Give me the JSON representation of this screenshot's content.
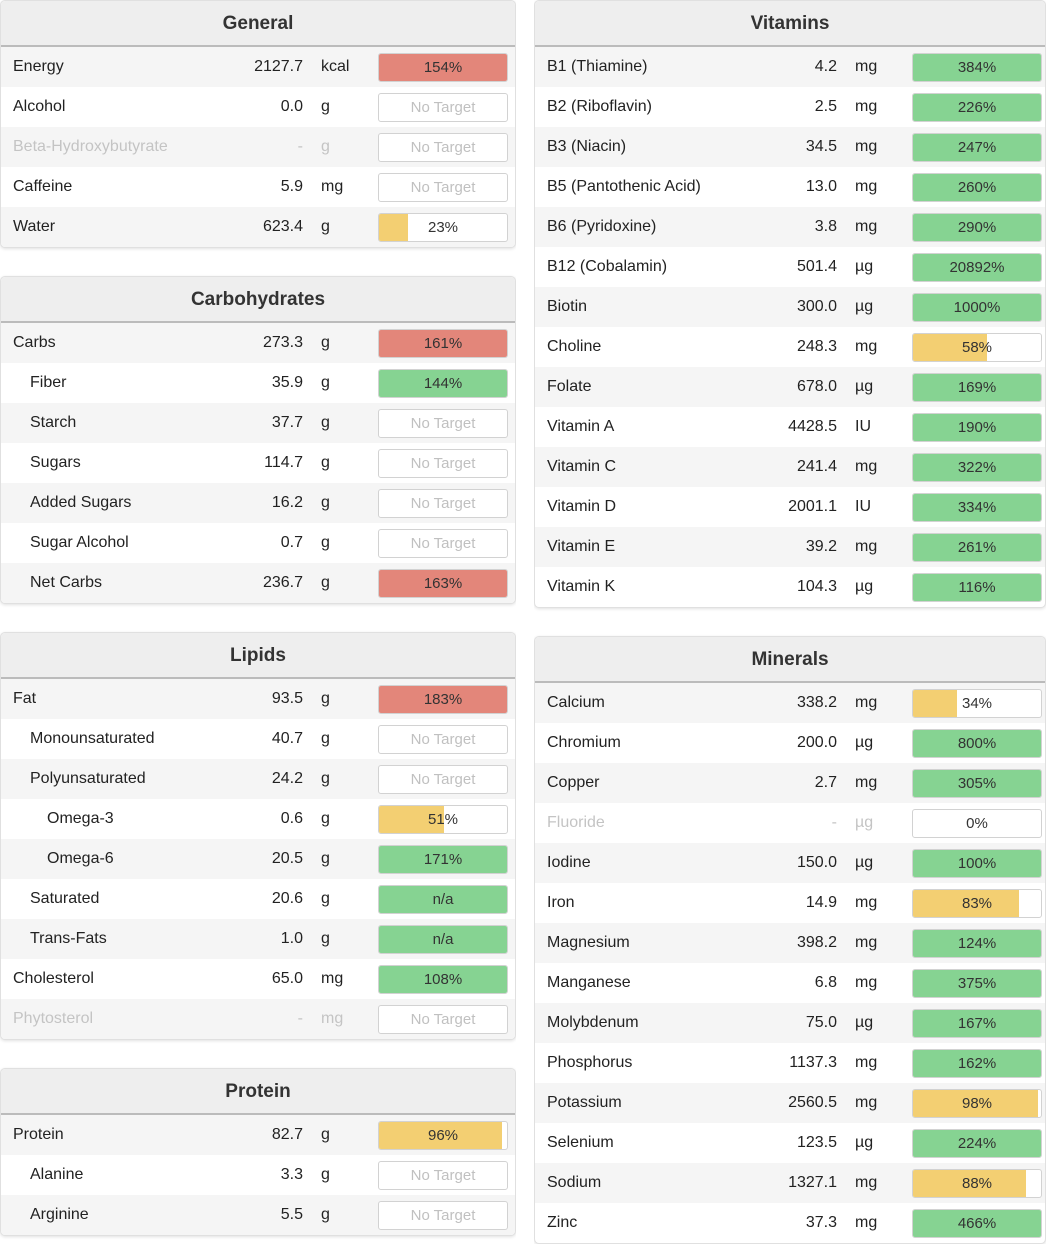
{
  "columns": [
    [
      {
        "title": "General",
        "rows": [
          {
            "name": "Energy",
            "amount": "2127.7",
            "unit": "kcal",
            "target": "154%",
            "percent": 154,
            "color": "#e3867a"
          },
          {
            "name": "Alcohol",
            "amount": "0.0",
            "unit": "g",
            "target": "No Target"
          },
          {
            "name": "Beta-Hydroxybutyrate",
            "amount": "-",
            "unit": "g",
            "target": "No Target",
            "muted": true
          },
          {
            "name": "Caffeine",
            "amount": "5.9",
            "unit": "mg",
            "target": "No Target"
          },
          {
            "name": "Water",
            "amount": "623.4",
            "unit": "g",
            "target": "23%",
            "percent": 23,
            "color": "#f3cf72"
          }
        ]
      },
      {
        "title": "Carbohydrates",
        "rows": [
          {
            "name": "Carbs",
            "amount": "273.3",
            "unit": "g",
            "target": "161%",
            "percent": 161,
            "color": "#e3867a"
          },
          {
            "name": "Fiber",
            "amount": "35.9",
            "unit": "g",
            "target": "144%",
            "percent": 144,
            "color": "#86d392",
            "indent": 1
          },
          {
            "name": "Starch",
            "amount": "37.7",
            "unit": "g",
            "target": "No Target",
            "indent": 1
          },
          {
            "name": "Sugars",
            "amount": "114.7",
            "unit": "g",
            "target": "No Target",
            "indent": 1
          },
          {
            "name": "Added Sugars",
            "amount": "16.2",
            "unit": "g",
            "target": "No Target",
            "indent": 1
          },
          {
            "name": "Sugar Alcohol",
            "amount": "0.7",
            "unit": "g",
            "target": "No Target",
            "indent": 1
          },
          {
            "name": "Net Carbs",
            "amount": "236.7",
            "unit": "g",
            "target": "163%",
            "percent": 163,
            "color": "#e3867a",
            "indent": 1
          }
        ]
      },
      {
        "title": "Lipids",
        "rows": [
          {
            "name": "Fat",
            "amount": "93.5",
            "unit": "g",
            "target": "183%",
            "percent": 183,
            "color": "#e3867a"
          },
          {
            "name": "Monounsaturated",
            "amount": "40.7",
            "unit": "g",
            "target": "No Target",
            "indent": 1
          },
          {
            "name": "Polyunsaturated",
            "amount": "24.2",
            "unit": "g",
            "target": "No Target",
            "indent": 1
          },
          {
            "name": "Omega-3",
            "amount": "0.6",
            "unit": "g",
            "target": "51%",
            "percent": 51,
            "color": "#f3cf72",
            "indent": 2
          },
          {
            "name": "Omega-6",
            "amount": "20.5",
            "unit": "g",
            "target": "171%",
            "percent": 171,
            "color": "#86d392",
            "indent": 2
          },
          {
            "name": "Saturated",
            "amount": "20.6",
            "unit": "g",
            "target": "n/a",
            "color": "#86d392",
            "indent": 1
          },
          {
            "name": "Trans-Fats",
            "amount": "1.0",
            "unit": "g",
            "target": "n/a",
            "color": "#86d392",
            "indent": 1
          },
          {
            "name": "Cholesterol",
            "amount": "65.0",
            "unit": "mg",
            "target": "108%",
            "percent": 108,
            "color": "#86d392"
          },
          {
            "name": "Phytosterol",
            "amount": "-",
            "unit": "mg",
            "target": "No Target",
            "muted": true
          }
        ]
      },
      {
        "title": "Protein",
        "rows": [
          {
            "name": "Protein",
            "amount": "82.7",
            "unit": "g",
            "target": "96%",
            "percent": 96,
            "color": "#f3cf72"
          },
          {
            "name": "Alanine",
            "amount": "3.3",
            "unit": "g",
            "target": "No Target",
            "indent": 1
          },
          {
            "name": "Arginine",
            "amount": "5.5",
            "unit": "g",
            "target": "No Target",
            "indent": 1
          }
        ]
      }
    ],
    [
      {
        "title": "Vitamins",
        "rows": [
          {
            "name": "B1 (Thiamine)",
            "amount": "4.2",
            "unit": "mg",
            "target": "384%",
            "percent": 384,
            "color": "#86d392"
          },
          {
            "name": "B2 (Riboflavin)",
            "amount": "2.5",
            "unit": "mg",
            "target": "226%",
            "percent": 226,
            "color": "#86d392"
          },
          {
            "name": "B3 (Niacin)",
            "amount": "34.5",
            "unit": "mg",
            "target": "247%",
            "percent": 247,
            "color": "#86d392"
          },
          {
            "name": "B5 (Pantothenic Acid)",
            "amount": "13.0",
            "unit": "mg",
            "target": "260%",
            "percent": 260,
            "color": "#86d392"
          },
          {
            "name": "B6 (Pyridoxine)",
            "amount": "3.8",
            "unit": "mg",
            "target": "290%",
            "percent": 290,
            "color": "#86d392"
          },
          {
            "name": "B12 (Cobalamin)",
            "amount": "501.4",
            "unit": "µg",
            "target": "20892%",
            "percent": 20892,
            "color": "#86d392"
          },
          {
            "name": "Biotin",
            "amount": "300.0",
            "unit": "µg",
            "target": "1000%",
            "percent": 1000,
            "color": "#86d392"
          },
          {
            "name": "Choline",
            "amount": "248.3",
            "unit": "mg",
            "target": "58%",
            "percent": 58,
            "color": "#f3cf72"
          },
          {
            "name": "Folate",
            "amount": "678.0",
            "unit": "µg",
            "target": "169%",
            "percent": 169,
            "color": "#86d392"
          },
          {
            "name": "Vitamin A",
            "amount": "4428.5",
            "unit": "IU",
            "target": "190%",
            "percent": 190,
            "color": "#86d392"
          },
          {
            "name": "Vitamin C",
            "amount": "241.4",
            "unit": "mg",
            "target": "322%",
            "percent": 322,
            "color": "#86d392"
          },
          {
            "name": "Vitamin D",
            "amount": "2001.1",
            "unit": "IU",
            "target": "334%",
            "percent": 334,
            "color": "#86d392"
          },
          {
            "name": "Vitamin E",
            "amount": "39.2",
            "unit": "mg",
            "target": "261%",
            "percent": 261,
            "color": "#86d392"
          },
          {
            "name": "Vitamin K",
            "amount": "104.3",
            "unit": "µg",
            "target": "116%",
            "percent": 116,
            "color": "#86d392"
          }
        ]
      },
      {
        "title": "Minerals",
        "rows": [
          {
            "name": "Calcium",
            "amount": "338.2",
            "unit": "mg",
            "target": "34%",
            "percent": 34,
            "color": "#f3cf72"
          },
          {
            "name": "Chromium",
            "amount": "200.0",
            "unit": "µg",
            "target": "800%",
            "percent": 800,
            "color": "#86d392"
          },
          {
            "name": "Copper",
            "amount": "2.7",
            "unit": "mg",
            "target": "305%",
            "percent": 305,
            "color": "#86d392"
          },
          {
            "name": "Fluoride",
            "amount": "-",
            "unit": "µg",
            "target": "0%",
            "percent": 0,
            "muted": true
          },
          {
            "name": "Iodine",
            "amount": "150.0",
            "unit": "µg",
            "target": "100%",
            "percent": 100,
            "color": "#86d392"
          },
          {
            "name": "Iron",
            "amount": "14.9",
            "unit": "mg",
            "target": "83%",
            "percent": 83,
            "color": "#f3cf72"
          },
          {
            "name": "Magnesium",
            "amount": "398.2",
            "unit": "mg",
            "target": "124%",
            "percent": 124,
            "color": "#86d392"
          },
          {
            "name": "Manganese",
            "amount": "6.8",
            "unit": "mg",
            "target": "375%",
            "percent": 375,
            "color": "#86d392"
          },
          {
            "name": "Molybdenum",
            "amount": "75.0",
            "unit": "µg",
            "target": "167%",
            "percent": 167,
            "color": "#86d392"
          },
          {
            "name": "Phosphorus",
            "amount": "1137.3",
            "unit": "mg",
            "target": "162%",
            "percent": 162,
            "color": "#86d392"
          },
          {
            "name": "Potassium",
            "amount": "2560.5",
            "unit": "mg",
            "target": "98%",
            "percent": 98,
            "color": "#f3cf72"
          },
          {
            "name": "Selenium",
            "amount": "123.5",
            "unit": "µg",
            "target": "224%",
            "percent": 224,
            "color": "#86d392"
          },
          {
            "name": "Sodium",
            "amount": "1327.1",
            "unit": "mg",
            "target": "88%",
            "percent": 88,
            "color": "#f3cf72"
          },
          {
            "name": "Zinc",
            "amount": "37.3",
            "unit": "mg",
            "target": "466%",
            "percent": 466,
            "color": "#86d392"
          }
        ]
      }
    ]
  ]
}
